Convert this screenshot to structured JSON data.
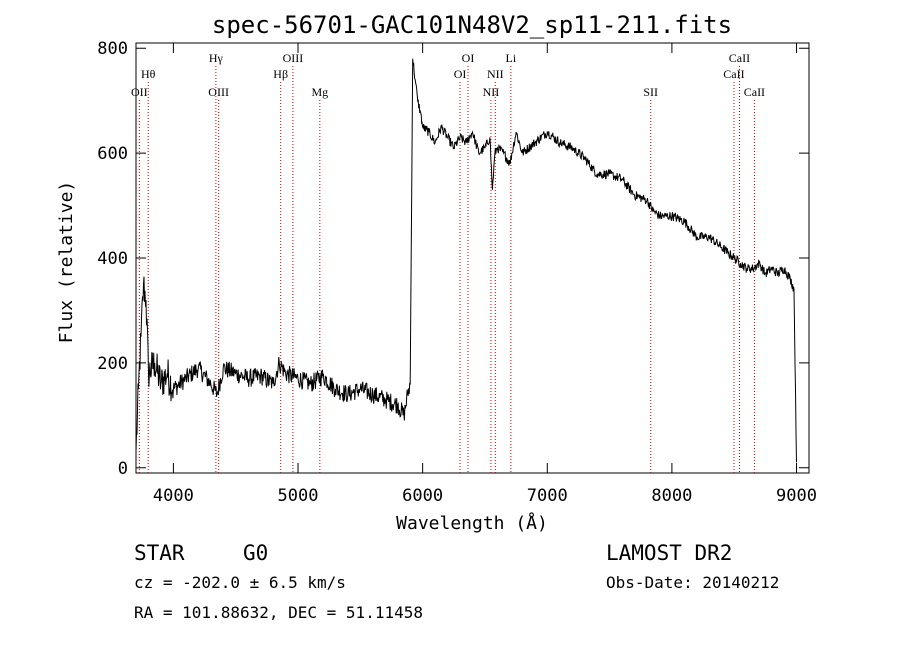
{
  "chart_data": {
    "type": "line",
    "title": "spec-56701-GAC101N48V2_sp11-211.fits",
    "xlabel": "Wavelength (Å)",
    "ylabel": "Flux (relative)",
    "xlim": [
      3700,
      9100
    ],
    "ylim": [
      -10,
      810
    ],
    "xticks": [
      4000,
      5000,
      6000,
      7000,
      8000,
      9000
    ],
    "yticks": [
      0,
      200,
      400,
      600,
      800
    ],
    "grid": false,
    "line_color": "#000000",
    "marker_color": "#cc0000",
    "series": [
      {
        "x": [
          3700,
          3720,
          3740,
          3760,
          3780,
          3800,
          3850,
          3900,
          3950,
          4000,
          4100,
          4200,
          4300,
          4350,
          4400,
          4500,
          4600,
          4700,
          4800,
          4850,
          4900,
          5000,
          5100,
          5200,
          5300,
          5400,
          5500,
          5600,
          5700,
          5800,
          5850,
          5880,
          5900,
          5920,
          5940,
          5960,
          5980,
          6000,
          6050,
          6100,
          6150,
          6200,
          6250,
          6300,
          6350,
          6400,
          6450,
          6500,
          6540,
          6560,
          6580,
          6600,
          6650,
          6700,
          6750,
          6800,
          6900,
          7000,
          7100,
          7200,
          7300,
          7400,
          7500,
          7600,
          7700,
          7800,
          7850,
          7900,
          8000,
          8100,
          8200,
          8300,
          8400,
          8450,
          8500,
          8550,
          8600,
          8650,
          8700,
          8750,
          8800,
          8850,
          8900,
          8950,
          8980,
          9000
        ],
        "y": [
          30,
          150,
          250,
          350,
          320,
          180,
          200,
          160,
          180,
          150,
          170,
          190,
          160,
          140,
          190,
          180,
          170,
          175,
          160,
          200,
          180,
          170,
          160,
          175,
          150,
          140,
          150,
          140,
          130,
          120,
          100,
          140,
          160,
          780,
          740,
          700,
          680,
          650,
          640,
          620,
          650,
          630,
          610,
          630,
          620,
          640,
          600,
          610,
          630,
          530,
          600,
          610,
          600,
          580,
          640,
          600,
          620,
          640,
          620,
          610,
          590,
          560,
          560,
          550,
          520,
          510,
          490,
          480,
          480,
          470,
          440,
          440,
          420,
          410,
          400,
          390,
          380,
          380,
          390,
          370,
          380,
          370,
          380,
          360,
          340,
          10
        ]
      }
    ],
    "lines": [
      {
        "label": "OII",
        "x": 3727,
        "row": 3
      },
      {
        "label": "Hθ",
        "x": 3798,
        "row": 2
      },
      {
        "label": "Hγ",
        "x": 4341,
        "row": 1
      },
      {
        "label": "OIII",
        "x": 4363,
        "row": 3
      },
      {
        "label": "Hβ",
        "x": 4861,
        "row": 2
      },
      {
        "label": "OIII",
        "x": 4959,
        "row": 1
      },
      {
        "label": "Mg",
        "x": 5175,
        "row": 3
      },
      {
        "label": "OI",
        "x": 6300,
        "row": 2
      },
      {
        "label": "OI",
        "x": 6364,
        "row": 1
      },
      {
        "label": "NII",
        "x": 6548,
        "row": 3
      },
      {
        "label": "NII",
        "x": 6583,
        "row": 2
      },
      {
        "label": "Li",
        "x": 6708,
        "row": 1
      },
      {
        "label": "SII",
        "x": 7830,
        "row": 3
      },
      {
        "label": "CaII",
        "x": 8498,
        "row": 2
      },
      {
        "label": "CaII",
        "x": 8542,
        "row": 1
      },
      {
        "label": "CaII",
        "x": 8662,
        "row": 3
      }
    ]
  },
  "info": {
    "object_class": "STAR",
    "subclass": "G0",
    "survey": "LAMOST DR2",
    "cz": "cz = -202.0 ± 6.5 km/s",
    "obs_date": "Obs-Date: 20140212",
    "coords": "RA = 101.88632, DEC =  51.11458"
  }
}
